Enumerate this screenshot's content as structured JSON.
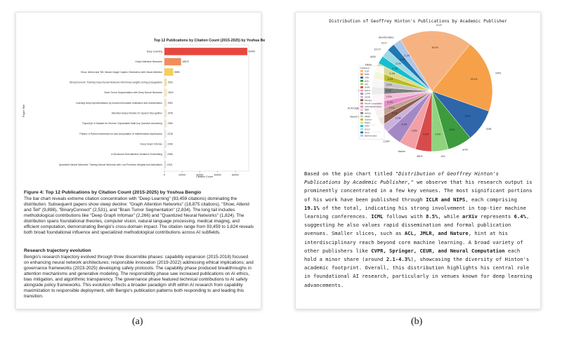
{
  "panel_a": {
    "chart_data": {
      "type": "bar",
      "orientation": "horizontal",
      "title": "Top 12 Publications by Citation Count (2015-2025) by Yoshua Be",
      "xlabel": "Citation Count",
      "ylabel": "Paper Title",
      "xlim": [
        0,
        95000
      ],
      "xticks": [
        "0",
        "20000",
        "40000",
        "60000",
        "80000"
      ],
      "categories": [
        "Deep Learning",
        "Graph Attention Networks",
        "Show, Attend and Tell: Neural Image Caption Generation with Visual Attention",
        "BinaryConnect: Training Deep Neural Networks with binary weights during propagations",
        "Brain Tumor Segmentation with Deep Neural Networks",
        "Learning deep representations by mutual information estimation and maximization",
        "Attention-Based Models for Speech Recognition",
        "FigureQA: A Dataset for Diverse, Explainable Multi-hop Question Answering",
        "Theano: A Python framework for fast computation of mathematical expressions",
        "Deep Graph Infomax",
        "A Structured Self-attentive Sentence Embedding",
        "Quantized Neural Networks: Training Neural Networks with Low Precision Weights and Activations"
      ],
      "values": [
        93459,
        18875,
        9898,
        2531,
        2834,
        2591,
        2576,
        2360,
        2318,
        2266,
        2088,
        1824
      ],
      "value_labels": [
        "93459",
        "18875",
        "9898",
        "2531",
        "2834",
        "2591",
        "2576",
        "2360",
        "2318",
        "2266",
        "2088",
        "1824"
      ],
      "colors": [
        "#e8463c",
        "#f28c5c",
        "#f6cf55",
        "#f4e39a",
        "#f6e7bd",
        "#f3e3c6",
        "#f2e5ce",
        "#efe7d8",
        "#ece8e0",
        "#e8e8e6",
        "#dfe8ee",
        "#cfe3f0"
      ]
    },
    "figure_title": "Figure 4: Top 12 Publications by Citation Count (2015-2025) by Yoshua Bengio",
    "figure_body": "The bar chart reveals extreme citation concentration with \"Deep Learning\" (93,459 citations) dominating the distribution. Subsequent papers show steep decline: \"Graph Attention Networks\" (18,875 citations), \"Show, Attend and Tell\" (9,898), \"BinaryConnect\" (2,531), and \"Brain Tumor Segmentation\" (2,834). The long tail includes methodological contributions like \"Deep Graph Infomax\" (2,266) and \"Quantized Neural Networks\" (1,824). The distribution spans foundational theories, computer vision, natural language processing, medical imaging, and efficient computation, demonstrating Bengio's cross-domain impact. The citation range from 93,459 to 1,824 reveals both broad foundational influence and specialized methodological contributions across AI subfields.",
    "section_heading": "Research trajectory evolution",
    "section_body": "Bengio's research trajectory evolved through three discernible phases: capability expansion (2015-2018) focused on enhancing neural network architectures; responsible innovation (2019-2022) addressing ethical implications; and governance frameworks (2023-2025) developing safety protocols. The capability phase produced breakthroughs in attention mechanisms and generative modeling. The responsibility phase saw increased publications on AI ethics, bias mitigation, and algorithmic transparency. The governance phase featured technical contributions to AI safety alongside policy frameworks. This evolution reflects a broader paradigm shift within AI research from capability maximization to responsible deployment, with Bengio's publication patterns both responding to and leading this transition."
  },
  "panel_b": {
    "chart_data": {
      "type": "pie",
      "title": "Distribution of Geoffrey Hinton's Publications by Academic Publisher",
      "slices": [
        {
          "label": "ICLR",
          "value": 19.1,
          "color": "#f6b381"
        },
        {
          "label": "NIPS",
          "value": 19.1,
          "color": "#f6a14a"
        },
        {
          "label": "ICML",
          "value": 8.5,
          "color": "#2f66a9"
        },
        {
          "label": "arXiv",
          "value": 6.4,
          "color": "#3c9b3c"
        },
        {
          "label": "ACL",
          "value": 4.3,
          "color": "#8fd47d"
        },
        {
          "label": "JMLR",
          "value": 4.3,
          "color": "#d64b4b"
        },
        {
          "label": "Nature",
          "value": 4.3,
          "color": "#f2a0a6"
        },
        {
          "label": "CVPR",
          "value": 4.3,
          "color": "#a488c6"
        },
        {
          "label": "CEUR",
          "value": 2.1,
          "color": "#c8b3dc"
        },
        {
          "label": "Springer",
          "value": 2.1,
          "color": "#8c5a4a"
        },
        {
          "label": "Neural Computation",
          "value": 2.1,
          "color": "#c4a094"
        },
        {
          "label": "ACM Digital Library",
          "value": 2.1,
          "color": "#e78cc4"
        },
        {
          "label": "IEEE",
          "value": 2.1,
          "color": "#f3bddb"
        },
        {
          "label": "NAACL",
          "value": 2.1,
          "color": "#7f7f7f"
        },
        {
          "label": "JAMA",
          "value": 2.1,
          "color": "#c7c7c7"
        },
        {
          "label": "Science",
          "value": 2.1,
          "color": "#bcbd22"
        },
        {
          "label": "PNAS",
          "value": 2.1,
          "color": "#dbdb8d"
        },
        {
          "label": "AAAI",
          "value": 2.1,
          "color": "#17becf"
        },
        {
          "label": "ECCV",
          "value": 2.1,
          "color": "#9edae5"
        },
        {
          "label": "ICCV",
          "value": 2.1,
          "color": "#1f77b4"
        },
        {
          "label": "Bioinformatics",
          "value": 2.1,
          "color": "#aec7e8"
        }
      ],
      "legend_title": "Publishers",
      "legend_position": "left"
    },
    "analysis": {
      "p1": "Based on the pie chart titled ",
      "title_quote": "\"Distribution of Geoffrey Hinton's Publications by Academic Publisher,\"",
      "p2": " we observe that his research output is prominently concentrated in a few key venues. The most significant portions of his work have been published through ",
      "b1": "ICLR and NIPS",
      "p3": ", each comprising ",
      "b2": "19.1%",
      "p4": " of the total, indicating his strong involvement in top-tier machine learning conferences. ",
      "b3": "ICML",
      "p5": " follows with ",
      "b4": "8.5%",
      "p6": ", while ",
      "b5": "arXiv",
      "p7": " represents ",
      "b6": "6.4%",
      "p8": ", suggesting he also values rapid dissemination and formal publication avenues. Smaller slices, such as ",
      "b7": "ACL, JMLR, and Nature",
      "p9": ", hint at his interdisciplinary reach beyond core machine learning. A broad variety of other publishers like ",
      "b8": "CVPR, Springer, CEUR, and Neural Computation",
      "p10": " each hold a minor share (around ",
      "b9": "2.1-4.3%",
      "p11": "), showcasing the diversity of Hinton's academic footprint. Overall, this distribution highlights his central role in foundational AI research, particularly in venues known for deep learning advancements."
    }
  },
  "captions": {
    "a": "(a)",
    "b": "(b)"
  }
}
